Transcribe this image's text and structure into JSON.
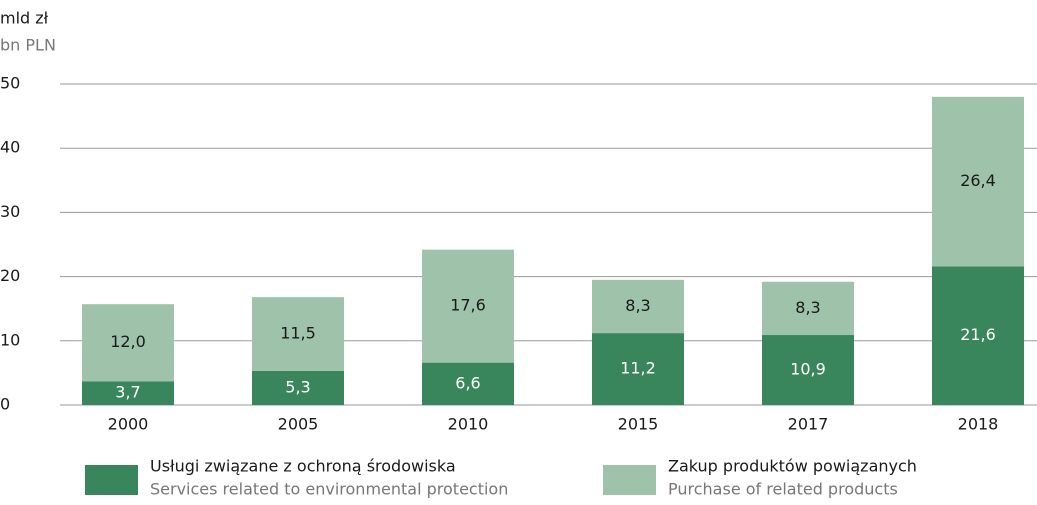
{
  "chart_data": {
    "type": "stacked_bar",
    "ylabel": "mld zł",
    "ylabel_secondary": "bn PLN",
    "categories": [
      "2000",
      "2005",
      "2010",
      "2015",
      "2017",
      "2018"
    ],
    "series": [
      {
        "name": "Usługi związane z ochroną środowiska",
        "subname": "Services related to environmental protection",
        "color": "#3a865c",
        "label_color": "#ffffff",
        "values": [
          3.7,
          5.3,
          6.6,
          11.2,
          10.9,
          21.6
        ],
        "value_labels": [
          "3,7",
          "5,3",
          "6,6",
          "11,2",
          "10,9",
          "21,6"
        ]
      },
      {
        "name": "Zakup produktów powiązanych",
        "subname": "Purchase of related products",
        "color": "#9fc2aa",
        "label_color": "#1a1a1a",
        "values": [
          12.0,
          11.5,
          17.6,
          8.3,
          8.3,
          26.4
        ],
        "value_labels": [
          "12,0",
          "11,5",
          "17,6",
          "8,3",
          "8,3",
          "26,4"
        ]
      }
    ],
    "ylim": [
      0,
      50
    ],
    "yticks": [
      0,
      10,
      20,
      30,
      40,
      50
    ],
    "grid": true
  }
}
